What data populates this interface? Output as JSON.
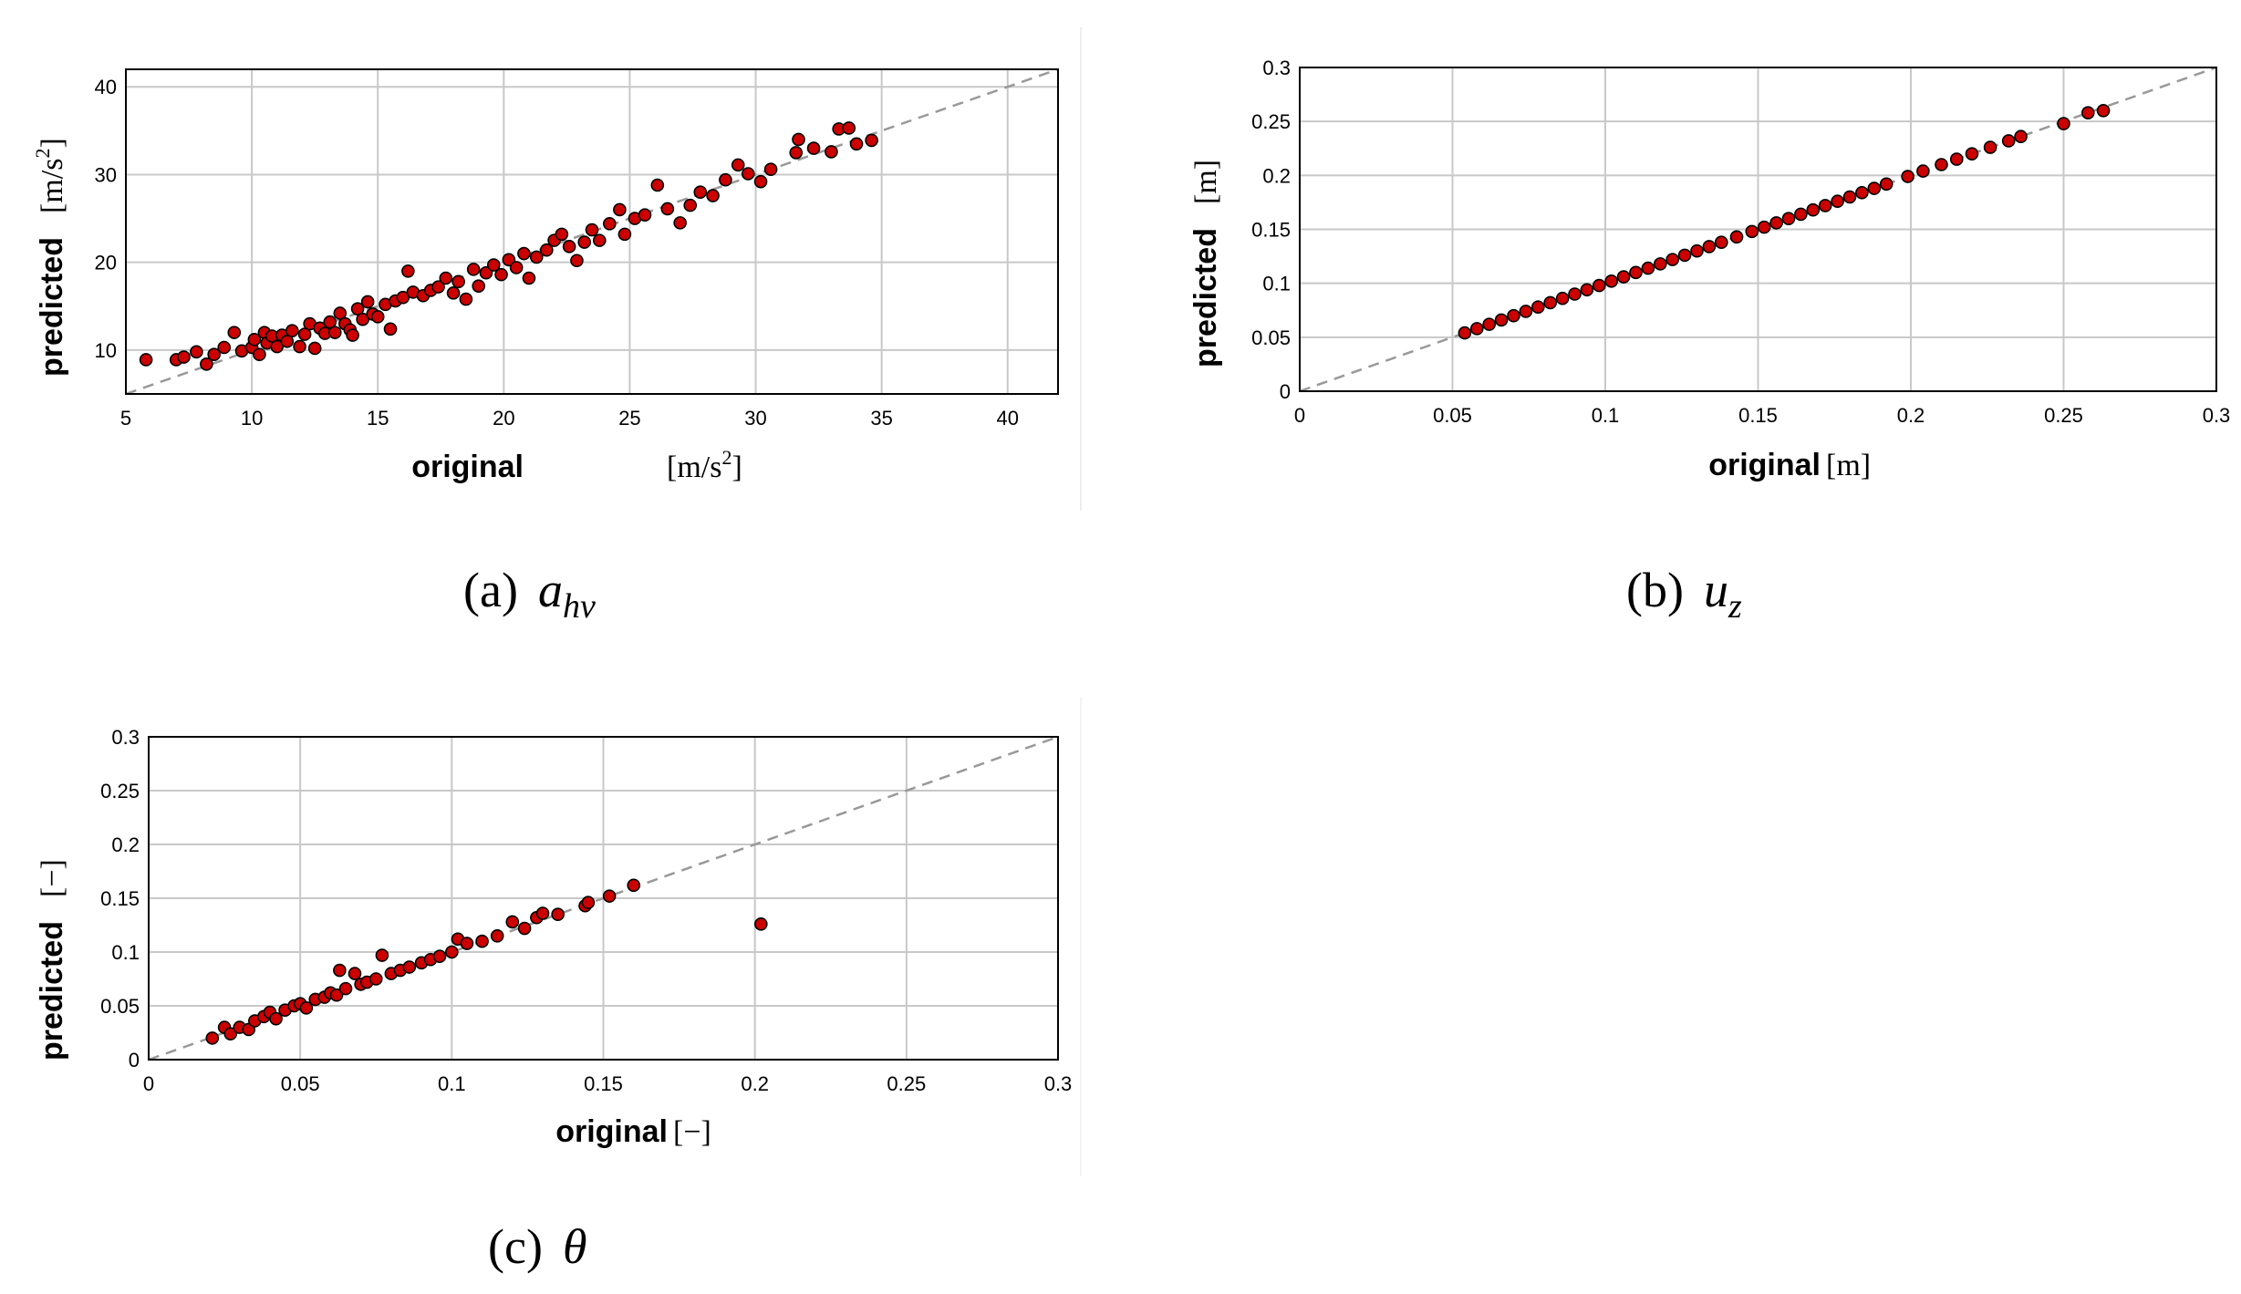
{
  "chart_data": [
    {
      "type": "scatter",
      "id": "a",
      "caption": {
        "label": "(a)",
        "symbol": "a",
        "symbol_sub": "hv"
      },
      "xlabel": "original",
      "xunit": "[m/s",
      "xunit_sup": "2",
      "xunit_end": "]",
      "ylabel": "predicted",
      "yunit": "[m/s",
      "yunit_sup": "2",
      "yunit_end": "]",
      "xlim": [
        5,
        42
      ],
      "ylim": [
        5,
        42
      ],
      "xticks": [
        5,
        10,
        15,
        20,
        25,
        30,
        35,
        40
      ],
      "yticks": [
        10,
        20,
        30,
        40
      ],
      "xtick_labels": [
        "5",
        "10",
        "15",
        "20",
        "25",
        "30",
        "35",
        "40"
      ],
      "ytick_labels": [
        "10",
        "20",
        "30",
        "40"
      ],
      "grid": true,
      "reference_line": "y = x",
      "points": [
        [
          5.8,
          8.9
        ],
        [
          7,
          8.9
        ],
        [
          7.3,
          9.2
        ],
        [
          7.8,
          9.8
        ],
        [
          8.2,
          8.4
        ],
        [
          8.5,
          9.5
        ],
        [
          8.9,
          10.3
        ],
        [
          9.3,
          12
        ],
        [
          9.6,
          9.9
        ],
        [
          10,
          10.3
        ],
        [
          10.1,
          11.2
        ],
        [
          10.3,
          9.5
        ],
        [
          10.5,
          12
        ],
        [
          10.6,
          10.8
        ],
        [
          10.8,
          11.6
        ],
        [
          11,
          10.4
        ],
        [
          11.2,
          11.7
        ],
        [
          11.4,
          11
        ],
        [
          11.6,
          12.2
        ],
        [
          11.9,
          10.4
        ],
        [
          12.1,
          11.8
        ],
        [
          12.3,
          13
        ],
        [
          12.5,
          10.2
        ],
        [
          12.7,
          12.5
        ],
        [
          12.9,
          11.9
        ],
        [
          13.1,
          13.2
        ],
        [
          13.3,
          12
        ],
        [
          13.5,
          14.2
        ],
        [
          13.7,
          13
        ],
        [
          13.9,
          12.3
        ],
        [
          14,
          11.7
        ],
        [
          14.2,
          14.7
        ],
        [
          14.4,
          13.5
        ],
        [
          14.6,
          15.5
        ],
        [
          14.8,
          14.1
        ],
        [
          15,
          13.8
        ],
        [
          15.3,
          15.2
        ],
        [
          15.5,
          12.4
        ],
        [
          15.7,
          15.6
        ],
        [
          16,
          16
        ],
        [
          16.2,
          19
        ],
        [
          16.4,
          16.6
        ],
        [
          16.8,
          16.2
        ],
        [
          17.1,
          16.8
        ],
        [
          17.4,
          17.2
        ],
        [
          17.7,
          18.2
        ],
        [
          18,
          16.5
        ],
        [
          18.2,
          17.8
        ],
        [
          18.5,
          15.8
        ],
        [
          18.8,
          19.2
        ],
        [
          19,
          17.3
        ],
        [
          19.3,
          18.8
        ],
        [
          19.6,
          19.7
        ],
        [
          19.9,
          18.6
        ],
        [
          20.2,
          20.3
        ],
        [
          20.5,
          19.4
        ],
        [
          20.8,
          21
        ],
        [
          21,
          18.2
        ],
        [
          21.3,
          20.6
        ],
        [
          21.7,
          21.4
        ],
        [
          22,
          22.5
        ],
        [
          22.3,
          23.2
        ],
        [
          22.6,
          21.8
        ],
        [
          22.9,
          20.2
        ],
        [
          23.2,
          22.3
        ],
        [
          23.5,
          23.7
        ],
        [
          23.8,
          22.5
        ],
        [
          24.2,
          24.4
        ],
        [
          24.6,
          26
        ],
        [
          24.8,
          23.2
        ],
        [
          25.2,
          25
        ],
        [
          25.6,
          25.4
        ],
        [
          26.1,
          28.8
        ],
        [
          26.5,
          26.1
        ],
        [
          27,
          24.5
        ],
        [
          27.4,
          26.5
        ],
        [
          27.8,
          28
        ],
        [
          28.3,
          27.6
        ],
        [
          28.8,
          29.4
        ],
        [
          29.3,
          31.1
        ],
        [
          29.7,
          30.1
        ],
        [
          30.2,
          29.2
        ],
        [
          30.6,
          30.6
        ],
        [
          31.6,
          32.5
        ],
        [
          31.7,
          34
        ],
        [
          32.3,
          33
        ],
        [
          33,
          32.6
        ],
        [
          33.3,
          35.2
        ],
        [
          33.7,
          35.3
        ],
        [
          34,
          33.5
        ],
        [
          34.6,
          33.9
        ]
      ]
    },
    {
      "type": "scatter",
      "id": "b",
      "caption": {
        "label": "(b)",
        "symbol": "u",
        "symbol_sub": "z"
      },
      "xlabel": "original",
      "xunit": "[m]",
      "ylabel": "predicted",
      "yunit": "[m]",
      "xlim": [
        0,
        0.3
      ],
      "ylim": [
        0,
        0.3
      ],
      "xticks": [
        0,
        0.05,
        0.1,
        0.15,
        0.2,
        0.25,
        0.3
      ],
      "yticks": [
        0,
        0.05,
        0.1,
        0.15,
        0.2,
        0.25,
        0.3
      ],
      "xtick_labels": [
        "0",
        "0.05",
        "0.1",
        "0.15",
        "0.2",
        "0.25",
        "0.3"
      ],
      "ytick_labels": [
        "0",
        "0.05",
        "0.1",
        "0.15",
        "0.2",
        "0.25",
        "0.3"
      ],
      "grid": true,
      "reference_line": "y = x",
      "points": [
        [
          0.054,
          0.054
        ],
        [
          0.058,
          0.058
        ],
        [
          0.062,
          0.062
        ],
        [
          0.066,
          0.066
        ],
        [
          0.07,
          0.07
        ],
        [
          0.074,
          0.074
        ],
        [
          0.078,
          0.078
        ],
        [
          0.082,
          0.082
        ],
        [
          0.086,
          0.086
        ],
        [
          0.09,
          0.09
        ],
        [
          0.094,
          0.094
        ],
        [
          0.098,
          0.098
        ],
        [
          0.102,
          0.102
        ],
        [
          0.106,
          0.106
        ],
        [
          0.11,
          0.11
        ],
        [
          0.114,
          0.114
        ],
        [
          0.118,
          0.118
        ],
        [
          0.122,
          0.122
        ],
        [
          0.126,
          0.126
        ],
        [
          0.13,
          0.13
        ],
        [
          0.134,
          0.134
        ],
        [
          0.138,
          0.138
        ],
        [
          0.143,
          0.143
        ],
        [
          0.148,
          0.148
        ],
        [
          0.152,
          0.152
        ],
        [
          0.156,
          0.156
        ],
        [
          0.16,
          0.16
        ],
        [
          0.164,
          0.164
        ],
        [
          0.168,
          0.168
        ],
        [
          0.172,
          0.172
        ],
        [
          0.176,
          0.176
        ],
        [
          0.18,
          0.18
        ],
        [
          0.184,
          0.184
        ],
        [
          0.188,
          0.188
        ],
        [
          0.192,
          0.192
        ],
        [
          0.199,
          0.199
        ],
        [
          0.204,
          0.204
        ],
        [
          0.21,
          0.21
        ],
        [
          0.215,
          0.215
        ],
        [
          0.22,
          0.22
        ],
        [
          0.226,
          0.226
        ],
        [
          0.232,
          0.232
        ],
        [
          0.236,
          0.236
        ],
        [
          0.25,
          0.248
        ],
        [
          0.258,
          0.258
        ],
        [
          0.263,
          0.26
        ]
      ]
    },
    {
      "type": "scatter",
      "id": "c",
      "caption": {
        "label": "(c)",
        "symbol": "θ",
        "symbol_sub": ""
      },
      "xlabel": "original",
      "xunit": "[−]",
      "ylabel": "predicted",
      "yunit": "[−]",
      "xlim": [
        0,
        0.3
      ],
      "ylim": [
        0,
        0.3
      ],
      "xticks": [
        0,
        0.05,
        0.1,
        0.15,
        0.2,
        0.25,
        0.3
      ],
      "yticks": [
        0,
        0.05,
        0.1,
        0.15,
        0.2,
        0.25,
        0.3
      ],
      "xtick_labels": [
        "0",
        "0.05",
        "0.1",
        "0.15",
        "0.2",
        "0.25",
        "0.3"
      ],
      "ytick_labels": [
        "0",
        "0.05",
        "0.1",
        "0.15",
        "0.2",
        "0.25",
        "0.3"
      ],
      "grid": true,
      "reference_line": "y = x",
      "points": [
        [
          0.021,
          0.02
        ],
        [
          0.025,
          0.03
        ],
        [
          0.027,
          0.024
        ],
        [
          0.03,
          0.03
        ],
        [
          0.033,
          0.028
        ],
        [
          0.035,
          0.036
        ],
        [
          0.038,
          0.04
        ],
        [
          0.04,
          0.044
        ],
        [
          0.042,
          0.038
        ],
        [
          0.045,
          0.046
        ],
        [
          0.048,
          0.05
        ],
        [
          0.05,
          0.052
        ],
        [
          0.052,
          0.048
        ],
        [
          0.055,
          0.056
        ],
        [
          0.058,
          0.058
        ],
        [
          0.06,
          0.062
        ],
        [
          0.062,
          0.06
        ],
        [
          0.063,
          0.083
        ],
        [
          0.065,
          0.066
        ],
        [
          0.068,
          0.08
        ],
        [
          0.07,
          0.07
        ],
        [
          0.072,
          0.072
        ],
        [
          0.075,
          0.075
        ],
        [
          0.077,
          0.097
        ],
        [
          0.08,
          0.08
        ],
        [
          0.083,
          0.083
        ],
        [
          0.086,
          0.086
        ],
        [
          0.09,
          0.09
        ],
        [
          0.093,
          0.093
        ],
        [
          0.096,
          0.096
        ],
        [
          0.1,
          0.1
        ],
        [
          0.102,
          0.112
        ],
        [
          0.105,
          0.108
        ],
        [
          0.11,
          0.11
        ],
        [
          0.115,
          0.115
        ],
        [
          0.12,
          0.128
        ],
        [
          0.124,
          0.122
        ],
        [
          0.128,
          0.132
        ],
        [
          0.13,
          0.136
        ],
        [
          0.135,
          0.135
        ],
        [
          0.144,
          0.143
        ],
        [
          0.145,
          0.146
        ],
        [
          0.152,
          0.152
        ],
        [
          0.16,
          0.162
        ],
        [
          0.202,
          0.126
        ]
      ]
    }
  ],
  "colors": {
    "marker_fill": "#cc0000",
    "marker_edge": "#000000",
    "grid": "#c8c8c8",
    "reference": "#999999",
    "separator": "#eeeeee"
  }
}
